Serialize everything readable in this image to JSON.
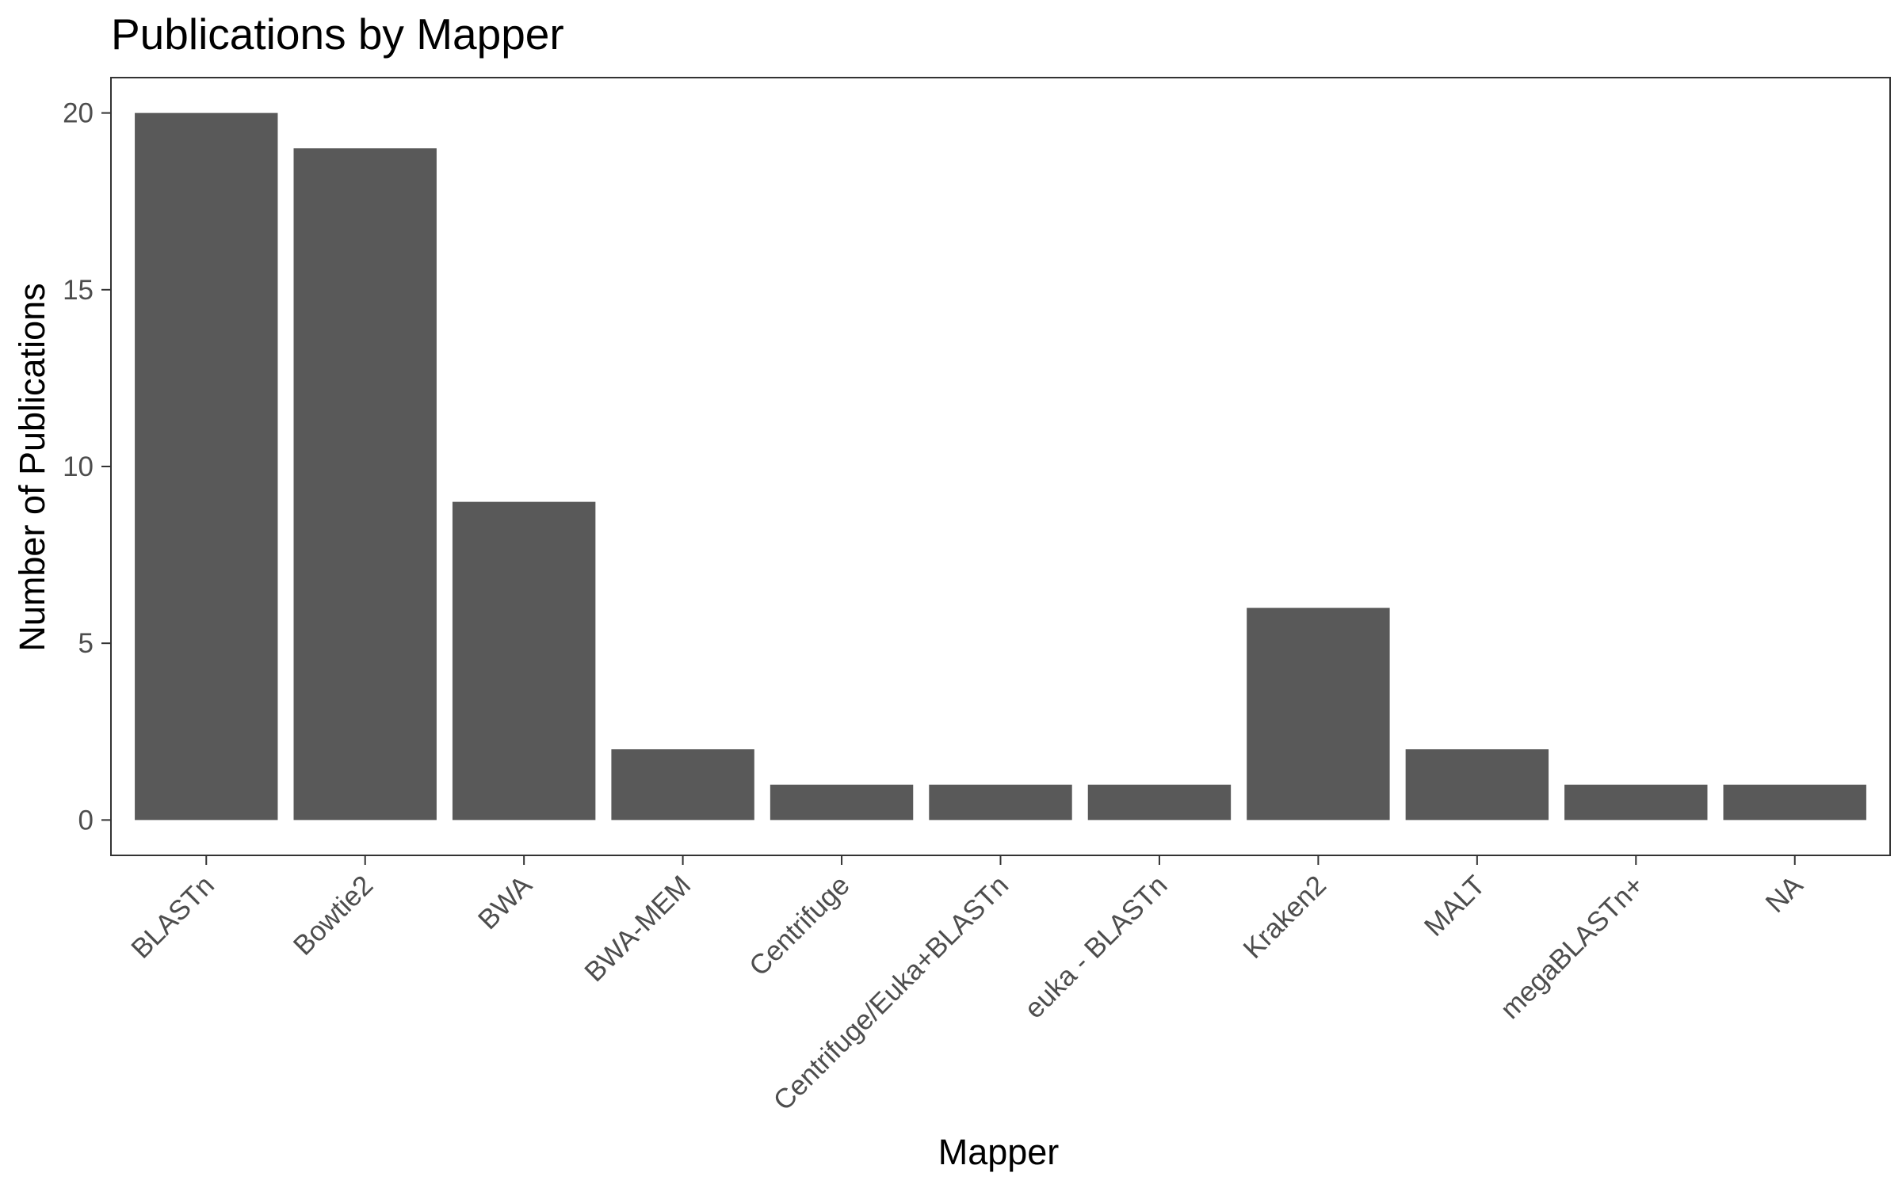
{
  "chart_data": {
    "type": "bar",
    "title": "Publications by Mapper",
    "xlabel": "Mapper",
    "ylabel": "Number of Publications",
    "categories": [
      "BLASTn",
      "Bowtie2",
      "BWA",
      "BWA-MEM",
      "Centrifuge",
      "Centrifuge/Euka+BLASTn",
      "euka - BLASTn",
      "Kraken2",
      "MALT",
      "megaBLASTn+",
      "NA"
    ],
    "values": [
      20,
      19,
      9,
      2,
      1,
      1,
      1,
      6,
      2,
      1,
      1
    ],
    "ylim": [
      -1,
      21
    ],
    "yticks": [
      0,
      5,
      10,
      15,
      20
    ],
    "ytick_labels": [
      "0",
      "5",
      "10",
      "15",
      "20"
    ],
    "grid": false,
    "legend": "none",
    "x_tick_rotation_deg": -45,
    "colors": {
      "bar": "#595959",
      "panel_border": "#333333",
      "tick_text": "#4d4d4d",
      "title_text": "#000000"
    }
  }
}
